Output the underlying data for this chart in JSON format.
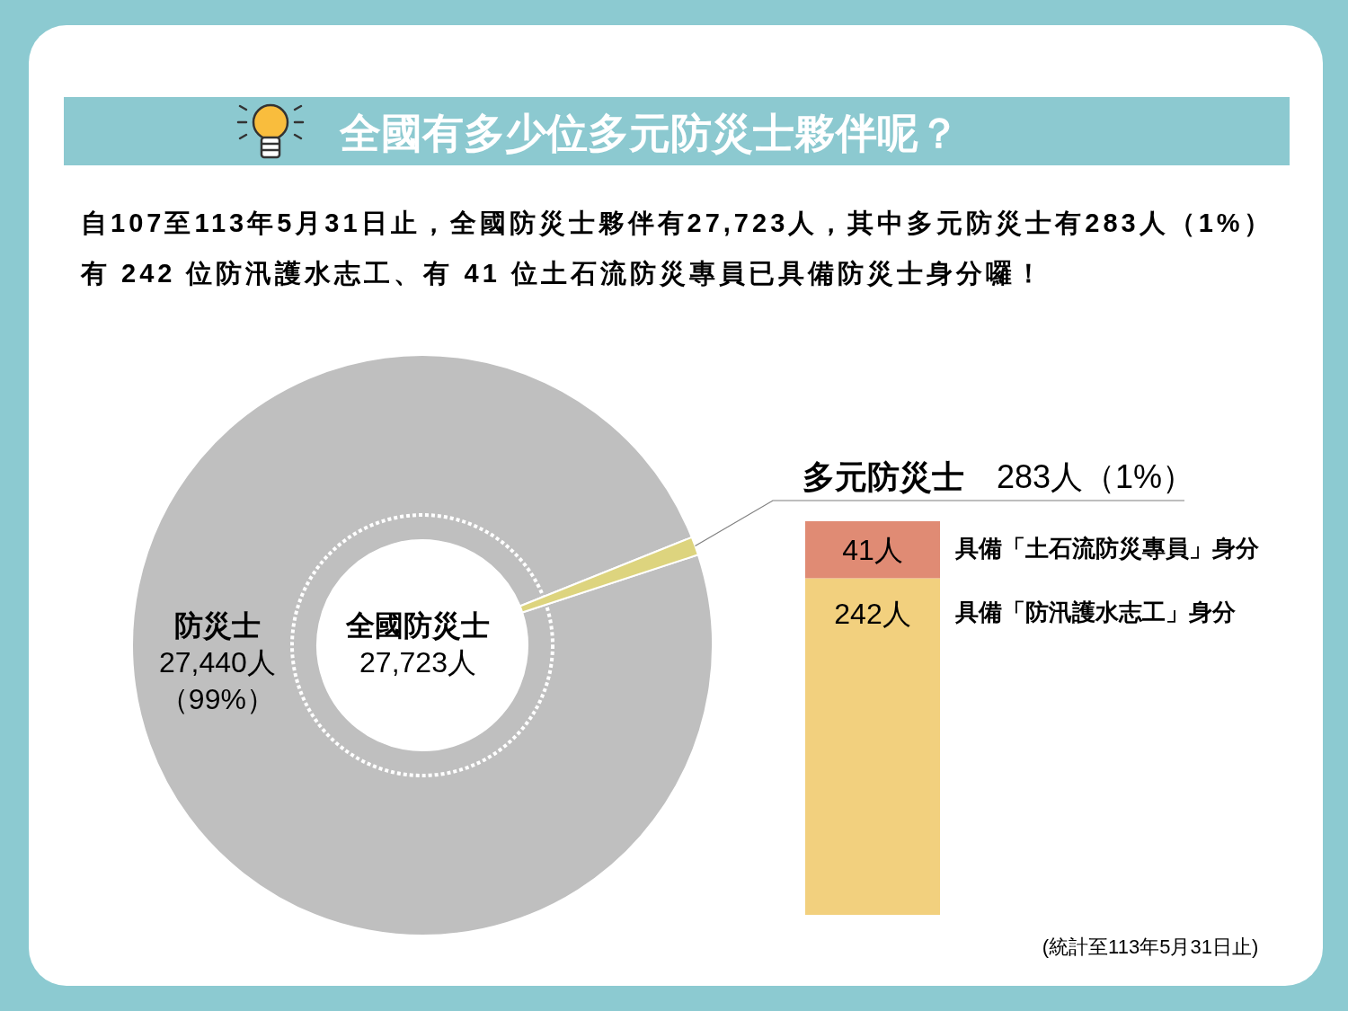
{
  "chart_data": [
    {
      "type": "donut",
      "title": "全國有多少位多元防災士夥伴呢？",
      "subtitle": "自107至113年5月31日止，全國防災士夥伴有27,723人，其中多元防災士有283人（1%）有 242 位防汛護水志工、有 41 位土石流防災專員已具備防災士身分囉！",
      "categories": [
        "防災士",
        "多元防災士"
      ],
      "values": [
        27440,
        283
      ],
      "colors": [
        "#bfbfbf",
        "#ddd47e"
      ],
      "value_labels": [
        "27,440人（99%）",
        "283人（1%）"
      ],
      "annotations": [
        "全國防災士\n27,723人",
        "(統計至113年5月31日止)"
      ]
    },
    {
      "type": "bar",
      "stacked": true,
      "categories": [
        null
      ],
      "series": [
        {
          "name": "具備「防汛護水志工」身分",
          "color": "#f2d07e",
          "values": [
            242
          ],
          "value_labels": [
            "242人"
          ]
        },
        {
          "name": "具備「土石流防災專員」身分",
          "color": "#e08b74",
          "values": [
            41
          ],
          "value_labels": [
            "41人"
          ]
        }
      ]
    }
  ]
}
